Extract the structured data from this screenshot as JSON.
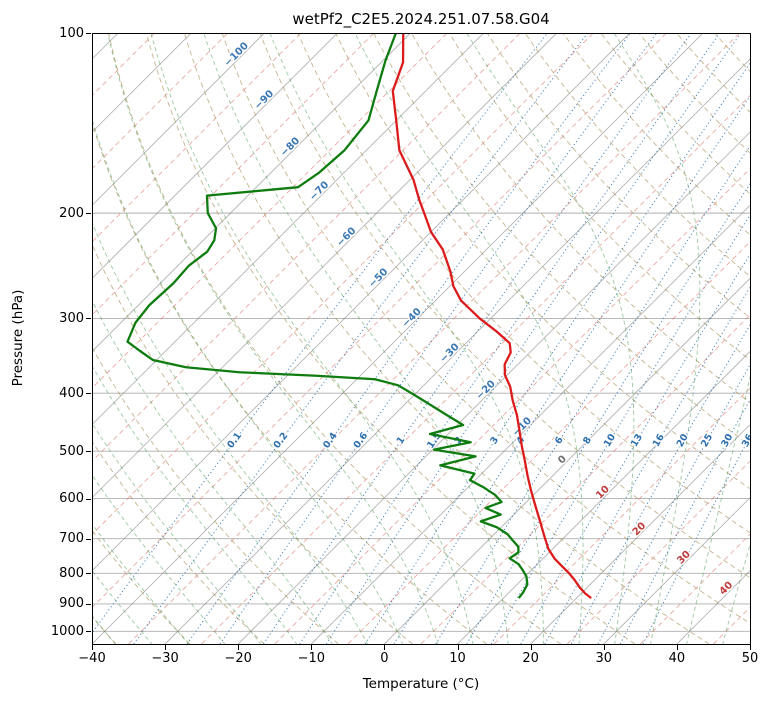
{
  "chart_data": {
    "type": "line",
    "variant": "skew-t-log-p-sounding",
    "title": "wetPf2_C2E5.2024.251.07.58.G04",
    "xlabel": "Temperature (°C)",
    "ylabel": "Pressure (hPa)",
    "x_range_degC": [
      -40,
      50
    ],
    "pressure_range_hPa": [
      100,
      1050
    ],
    "pressure_scale": "log",
    "skew": "isotherms-45deg",
    "grid": true,
    "x_tick_values": [
      -40,
      -30,
      -20,
      -10,
      0,
      10,
      20,
      30,
      40,
      50
    ],
    "x_tick_labels": [
      "−40",
      "−30",
      "−20",
      "−10",
      "0",
      "10",
      "20",
      "30",
      "40",
      "50"
    ],
    "y_tick_values": [
      100,
      200,
      300,
      400,
      500,
      600,
      700,
      800,
      900,
      1000
    ],
    "y_tick_labels": [
      "100",
      "200",
      "300",
      "400",
      "500",
      "600",
      "700",
      "800",
      "900",
      "1000"
    ],
    "point_format": "[pressure_hPa, temperature_C]",
    "series": [
      {
        "name": "temperature",
        "color": "#dc1c1c",
        "points": [
          [
            100,
            -81
          ],
          [
            112,
            -77
          ],
          [
            125,
            -74.5
          ],
          [
            140,
            -70
          ],
          [
            157,
            -65.5
          ],
          [
            176,
            -59.5
          ],
          [
            190,
            -56
          ],
          [
            200,
            -53.5
          ],
          [
            215,
            -50
          ],
          [
            230,
            -46
          ],
          [
            250,
            -42
          ],
          [
            265,
            -39.5
          ],
          [
            280,
            -36.5
          ],
          [
            300,
            -31.5
          ],
          [
            315,
            -27.5
          ],
          [
            330,
            -24
          ],
          [
            342,
            -22.6
          ],
          [
            358,
            -21.8
          ],
          [
            373,
            -20.3
          ],
          [
            390,
            -18
          ],
          [
            411,
            -15.8
          ],
          [
            435,
            -13.2
          ],
          [
            461,
            -10.8
          ],
          [
            490,
            -8.3
          ],
          [
            517,
            -6
          ],
          [
            550,
            -3.4
          ],
          [
            581,
            -1
          ],
          [
            615,
            1.6
          ],
          [
            652,
            4.3
          ],
          [
            690,
            6.9
          ],
          [
            728,
            9.4
          ],
          [
            756,
            11.6
          ],
          [
            780,
            13.8
          ],
          [
            800,
            15.6
          ],
          [
            820,
            17.2
          ],
          [
            845,
            19
          ],
          [
            865,
            20.6
          ],
          [
            880,
            22
          ]
        ]
      },
      {
        "name": "dewpoint",
        "color": "#0e7c0e",
        "points": [
          [
            100,
            -82
          ],
          [
            111,
            -79.7
          ],
          [
            125,
            -76.7
          ],
          [
            140,
            -73.8
          ],
          [
            157,
            -73
          ],
          [
            171,
            -73.4
          ],
          [
            181,
            -74.3
          ],
          [
            187,
            -85.6
          ],
          [
            200,
            -83.1
          ],
          [
            212,
            -79.9
          ],
          [
            222,
            -78.5
          ],
          [
            232,
            -77.9
          ],
          [
            245,
            -78.5
          ],
          [
            262,
            -78.2
          ],
          [
            285,
            -78.5
          ],
          [
            305,
            -78
          ],
          [
            328,
            -76.5
          ],
          [
            340,
            -73.5
          ],
          [
            352,
            -70.5
          ],
          [
            362,
            -65
          ],
          [
            369,
            -57
          ],
          [
            374,
            -46
          ],
          [
            379,
            -37.5
          ],
          [
            388,
            -33.5
          ],
          [
            403,
            -29.9
          ],
          [
            418,
            -26.5
          ],
          [
            435,
            -22.8
          ],
          [
            452,
            -19.2
          ],
          [
            468,
            -22.5
          ],
          [
            483,
            -15.8
          ],
          [
            497,
            -19.8
          ],
          [
            510,
            -13.2
          ],
          [
            528,
            -16.8
          ],
          [
            545,
            -11
          ],
          [
            559,
            -10.7
          ],
          [
            575,
            -7.8
          ],
          [
            592,
            -5.2
          ],
          [
            608,
            -3.4
          ],
          [
            622,
            -4.8
          ],
          [
            638,
            -1.8
          ],
          [
            655,
            -3.6
          ],
          [
            670,
            -0.6
          ],
          [
            688,
            1.8
          ],
          [
            705,
            3.4
          ],
          [
            722,
            5
          ],
          [
            738,
            5.8
          ],
          [
            755,
            5.4
          ],
          [
            772,
            7.4
          ],
          [
            790,
            8.8
          ],
          [
            810,
            10.2
          ],
          [
            835,
            11.4
          ],
          [
            860,
            11.9
          ],
          [
            880,
            12.1
          ]
        ]
      }
    ],
    "guide_lines": {
      "isotherms_solid": {
        "color": "rgba(120,120,120,0.55)",
        "start": -120,
        "end": 50,
        "step": 10
      },
      "isotherms_dashed": {
        "color": "rgba(224,110,100,0.6)",
        "start": -115,
        "end": 45,
        "step": 10
      },
      "dry_adiabats": {
        "color": "rgba(172,148,92,0.7)",
        "theta_start": -40,
        "theta_end": 210,
        "step": 10
      },
      "moist_adiabats": {
        "color": "rgba(58,148,70,0.5)",
        "t0_start": -40,
        "t0_end": 45,
        "step": 5
      },
      "mixing_ratio_g_kg": [
        0.1,
        0.2,
        0.4,
        0.6,
        1,
        1.5,
        2,
        3,
        4,
        6,
        8,
        10,
        13,
        16,
        20,
        25,
        30,
        36
      ],
      "mixing_color": "rgba(45,115,178,0.85)",
      "mixing_label_color": "#2d6fae",
      "mixing_label_pressure_hPa": 480
    },
    "isotherm_labels": [
      {
        "value": -100,
        "label": "−100",
        "p": 110
      },
      {
        "value": -90,
        "label": "−90",
        "p": 131
      },
      {
        "value": -80,
        "label": "−80",
        "p": 157
      },
      {
        "value": -70,
        "label": "−70",
        "p": 186
      },
      {
        "value": -60,
        "label": "−60",
        "p": 222
      },
      {
        "value": -50,
        "label": "−50",
        "p": 260
      },
      {
        "value": -40,
        "label": "−40",
        "p": 303
      },
      {
        "value": -30,
        "label": "−30",
        "p": 347
      },
      {
        "value": -20,
        "label": "−20",
        "p": 400
      },
      {
        "value": -10,
        "label": "−10",
        "p": 461
      },
      {
        "value": 0,
        "label": "0",
        "p": 523
      },
      {
        "value": 10,
        "label": "10",
        "p": 593
      },
      {
        "value": 20,
        "label": "20",
        "p": 683
      },
      {
        "value": 30,
        "label": "30",
        "p": 762
      },
      {
        "value": 40,
        "label": "40",
        "p": 858
      }
    ],
    "isotherm_label_colors": {
      "negative": "#3c78b4",
      "zero": "#707070",
      "positive": "#c03c3c"
    }
  }
}
